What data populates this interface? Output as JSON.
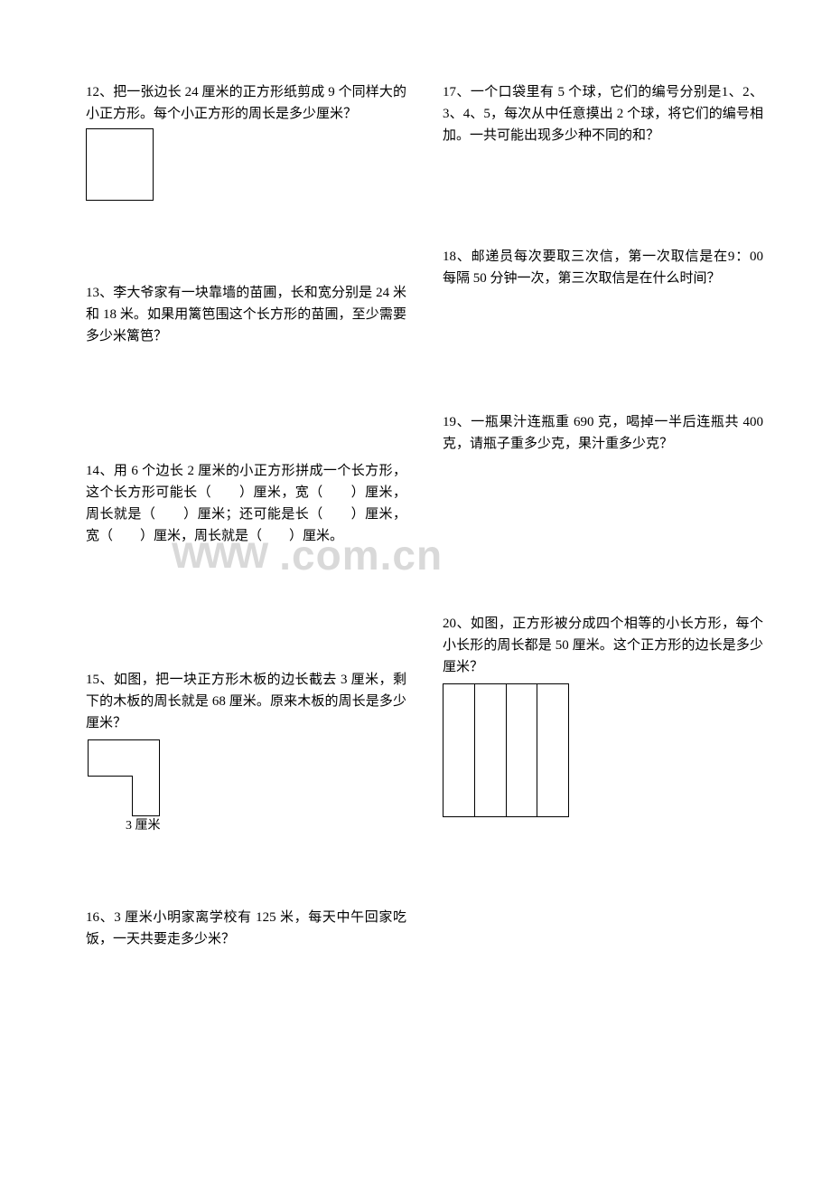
{
  "watermark": {
    "prefix": "WWW",
    "domain": ".com.cn",
    "color": "#d9d9d9"
  },
  "left_column": {
    "p12": {
      "text": "12、把一张边长 24 厘米的正方形纸剪成 9 个同样大的小正方形。每个小正方形的周长是多少厘米？"
    },
    "p13": {
      "text": "13、李大爷家有一块靠墙的苗圃，长和宽分别是 24 米和 18 米。如果用篱笆围这个长方形的苗圃，至少需要多少米篱笆？"
    },
    "p14": {
      "text": "14、用 6 个边长 2 厘米的小正方形拼成一个长方形，这个长方形可能长（　　）厘米，宽（　　）厘米，周长就是（　　）厘米；还可能是长（　　）厘米，宽（　　）厘米，周长就是（　　）厘米。"
    },
    "p15": {
      "text": "15、如图，把一块正方形木板的边长截去 3 厘米，剩下的木板的周长就是 68 厘米。原来木板的周长是多少厘米？",
      "cut_label": "3 厘米"
    },
    "p16": {
      "text": "16、3 厘米小明家离学校有 125 米，每天中午回家吃饭，一天共要走多少米？"
    }
  },
  "right_column": {
    "p17": {
      "text": "17、一个口袋里有 5 个球，它们的编号分别是1、2、3、4、5，每次从中任意摸出 2 个球，将它们的编号相加。一共可能出现多少种不同的和？"
    },
    "p18": {
      "text": "18、邮递员每次要取三次信，第一次取信是在9：00 每隔 50 分钟一次，第三次取信是在什么时间？"
    },
    "p19": {
      "text": "19、一瓶果汁连瓶重 690 克，喝掉一半后连瓶共 400 克，请瓶子重多少克，果汁重多少克？"
    },
    "p20": {
      "text": "20、如图，正方形被分成四个相等的小长方形，每个小长形的周长都是 50 厘米。这个正方形的边长是多少厘米？"
    }
  }
}
